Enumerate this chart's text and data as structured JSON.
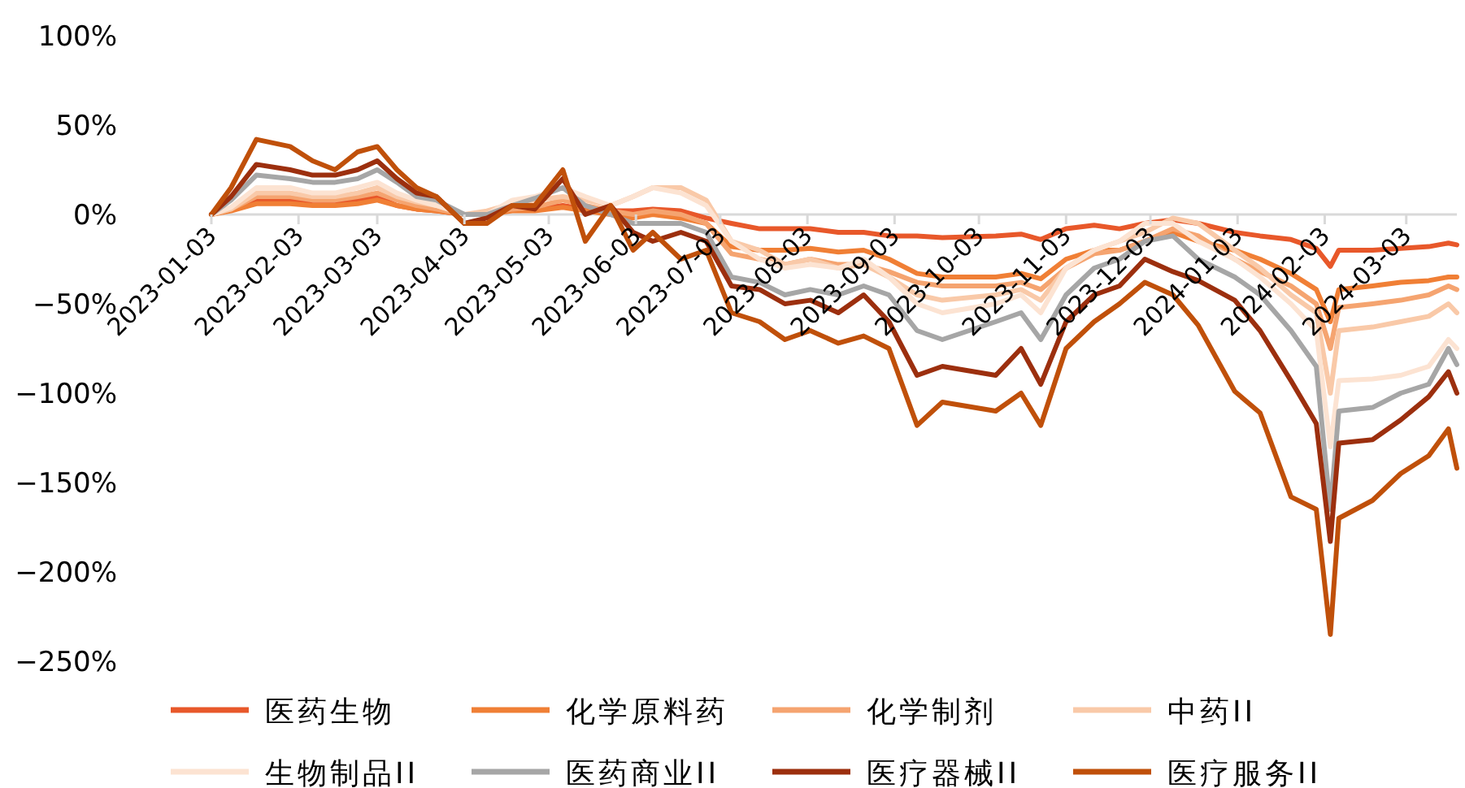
{
  "chart_data": {
    "type": "line",
    "x": [
      "2023-01-03",
      "2023-01-10",
      "2023-01-19",
      "2023-01-31",
      "2023-02-08",
      "2023-02-16",
      "2023-02-24",
      "2023-03-03",
      "2023-03-10",
      "2023-03-17",
      "2023-03-24",
      "2023-04-03",
      "2023-04-11",
      "2023-04-20",
      "2023-04-28",
      "2023-05-08",
      "2023-05-16",
      "2023-05-25",
      "2023-06-02",
      "2023-06-09",
      "2023-06-19",
      "2023-06-28",
      "2023-07-07",
      "2023-07-17",
      "2023-07-26",
      "2023-08-04",
      "2023-08-14",
      "2023-08-23",
      "2023-09-01",
      "2023-09-11",
      "2023-09-20",
      "2023-10-09",
      "2023-10-18",
      "2023-10-25",
      "2023-11-03",
      "2023-11-13",
      "2023-11-22",
      "2023-12-01",
      "2023-12-11",
      "2023-12-20",
      "2024-01-02",
      "2024-01-11",
      "2024-01-22",
      "2024-01-31",
      "2024-02-05",
      "2024-02-08",
      "2024-02-20",
      "2024-03-01",
      "2024-03-11",
      "2024-03-18",
      "2024-03-21"
    ],
    "xlim": [
      "2023-01-03",
      "2024-03-21"
    ],
    "xticks": [
      "2023-01-03",
      "2023-02-03",
      "2023-03-03",
      "2023-04-03",
      "2023-05-03",
      "2023-06-03",
      "2023-07-03",
      "2023-08-03",
      "2023-09-03",
      "2023-10-03",
      "2023-11-03",
      "2023-12-03",
      "2024-01-03",
      "2024-02-03",
      "2024-03-03"
    ],
    "ylim": [
      -250,
      100
    ],
    "yticks": [
      {
        "value": 100,
        "label": "100%"
      },
      {
        "value": 50,
        "label": "50%"
      },
      {
        "value": 0,
        "label": "0%"
      },
      {
        "value": -50,
        "label": "−50%"
      },
      {
        "value": -100,
        "label": "−100%"
      },
      {
        "value": -150,
        "label": "−150%"
      },
      {
        "value": -200,
        "label": "−200%"
      },
      {
        "value": -250,
        "label": "−250%"
      }
    ],
    "legend": "bottom",
    "series": [
      {
        "name": "医药生物",
        "color": "#e8582a",
        "values": [
          0,
          3,
          8,
          8,
          6,
          6,
          8,
          10,
          5,
          3,
          2,
          0,
          0,
          3,
          3,
          5,
          3,
          2,
          2,
          3,
          2,
          -2,
          -5,
          -8,
          -8,
          -8,
          -10,
          -10,
          -12,
          -12,
          -13,
          -12,
          -11,
          -14,
          -8,
          -6,
          -8,
          -5,
          -3,
          -5,
          -10,
          -12,
          -14,
          -19,
          -29,
          -20,
          -20,
          -19,
          -18,
          -16,
          -17
        ]
      },
      {
        "name": "化学原料药",
        "color": "#f07f35",
        "values": [
          0,
          2,
          6,
          6,
          5,
          5,
          6,
          8,
          5,
          3,
          2,
          0,
          0,
          2,
          2,
          4,
          2,
          0,
          -2,
          0,
          -2,
          -5,
          -18,
          -20,
          -20,
          -19,
          -21,
          -20,
          -25,
          -33,
          -35,
          -35,
          -33,
          -36,
          -25,
          -20,
          -20,
          -15,
          -10,
          -15,
          -20,
          -25,
          -33,
          -42,
          -60,
          -42,
          -40,
          -38,
          -37,
          -35,
          -35
        ]
      },
      {
        "name": "化学制剂",
        "color": "#f5a470",
        "values": [
          0,
          3,
          10,
          10,
          8,
          8,
          10,
          12,
          8,
          5,
          3,
          0,
          0,
          3,
          4,
          8,
          5,
          2,
          0,
          2,
          0,
          -5,
          -22,
          -25,
          -28,
          -25,
          -28,
          -28,
          -32,
          -38,
          -40,
          -40,
          -38,
          -42,
          -30,
          -22,
          -20,
          -15,
          -8,
          -12,
          -25,
          -32,
          -40,
          -50,
          -75,
          -52,
          -50,
          -48,
          -45,
          -40,
          -42
        ]
      },
      {
        "name": "中药II",
        "color": "#f9c9a8",
        "values": [
          0,
          3,
          12,
          12,
          10,
          10,
          12,
          15,
          10,
          7,
          5,
          0,
          2,
          6,
          8,
          10,
          8,
          5,
          10,
          15,
          15,
          8,
          -15,
          -20,
          -28,
          -25,
          -30,
          -28,
          -35,
          -45,
          -48,
          -45,
          -42,
          -48,
          -30,
          -20,
          -15,
          -10,
          -2,
          -5,
          -20,
          -30,
          -45,
          -55,
          -100,
          -65,
          -63,
          -60,
          -57,
          -50,
          -55
        ]
      },
      {
        "name": "生物制品II",
        "color": "#fce3d2",
        "values": [
          0,
          4,
          15,
          15,
          12,
          12,
          15,
          18,
          12,
          8,
          5,
          0,
          0,
          8,
          10,
          15,
          10,
          5,
          10,
          15,
          12,
          5,
          -15,
          -25,
          -30,
          -28,
          -30,
          -25,
          -35,
          -50,
          -55,
          -50,
          -45,
          -55,
          -30,
          -20,
          -15,
          -5,
          -5,
          -15,
          -25,
          -35,
          -50,
          -65,
          -130,
          -93,
          -92,
          -90,
          -85,
          -70,
          -75
        ]
      },
      {
        "name": "医药商业II",
        "color": "#a6a6a6",
        "values": [
          0,
          8,
          22,
          20,
          18,
          18,
          20,
          25,
          18,
          10,
          8,
          0,
          0,
          5,
          9,
          15,
          5,
          0,
          -5,
          -5,
          -5,
          -10,
          -35,
          -38,
          -45,
          -42,
          -45,
          -40,
          -45,
          -65,
          -70,
          -60,
          -55,
          -70,
          -45,
          -30,
          -25,
          -15,
          -12,
          -25,
          -35,
          -45,
          -65,
          -85,
          -165,
          -110,
          -108,
          -100,
          -95,
          -75,
          -84
        ]
      },
      {
        "name": "医疗器械II",
        "color": "#9c2f0e",
        "values": [
          0,
          10,
          28,
          25,
          22,
          22,
          25,
          30,
          20,
          12,
          10,
          -5,
          -2,
          5,
          3,
          20,
          0,
          5,
          -10,
          -15,
          -10,
          -15,
          -40,
          -42,
          -50,
          -48,
          -55,
          -45,
          -60,
          -90,
          -85,
          -90,
          -75,
          -95,
          -60,
          -45,
          -40,
          -25,
          -32,
          -37,
          -48,
          -65,
          -93,
          -117,
          -183,
          -128,
          -126,
          -115,
          -102,
          -88,
          -100
        ]
      },
      {
        "name": "医疗服务II",
        "color": "#c0500a",
        "values": [
          0,
          15,
          42,
          38,
          30,
          25,
          35,
          38,
          25,
          15,
          10,
          -5,
          -5,
          5,
          5,
          25,
          -15,
          5,
          -20,
          -10,
          -25,
          -20,
          -55,
          -60,
          -70,
          -65,
          -72,
          -68,
          -75,
          -118,
          -105,
          -110,
          -100,
          -118,
          -75,
          -60,
          -50,
          -38,
          -45,
          -62,
          -99,
          -111,
          -158,
          -165,
          -235,
          -170,
          -160,
          -145,
          -135,
          -120,
          -142
        ]
      }
    ]
  }
}
